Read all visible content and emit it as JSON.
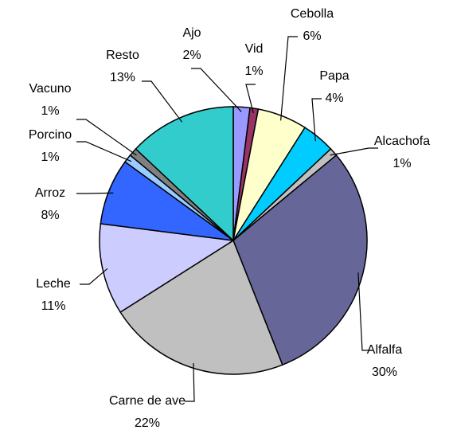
{
  "chart_data": {
    "type": "pie",
    "categories": [
      "Ajo",
      "Vid",
      "Cebolla",
      "Papa",
      "Alcachofa",
      "Alfalfa",
      "Carne de ave",
      "Leche",
      "Arroz",
      "Porcino",
      "Vacuno",
      "Resto"
    ],
    "values": [
      2,
      1,
      6,
      4,
      1,
      30,
      22,
      11,
      8,
      1,
      1,
      13
    ],
    "value_labels": [
      "2%",
      "1%",
      "6%",
      "4%",
      "1%",
      "30%",
      "22%",
      "11%",
      "8%",
      "1%",
      "1%",
      "13%"
    ],
    "colors": [
      "#9999ff",
      "#993366",
      "#ffffcc",
      "#00ccff",
      "#c0c0c0",
      "#666699",
      "#c0c0c0",
      "#ccccff",
      "#3366ff",
      "#99ccff",
      "#808080",
      "#33cccc"
    ]
  }
}
